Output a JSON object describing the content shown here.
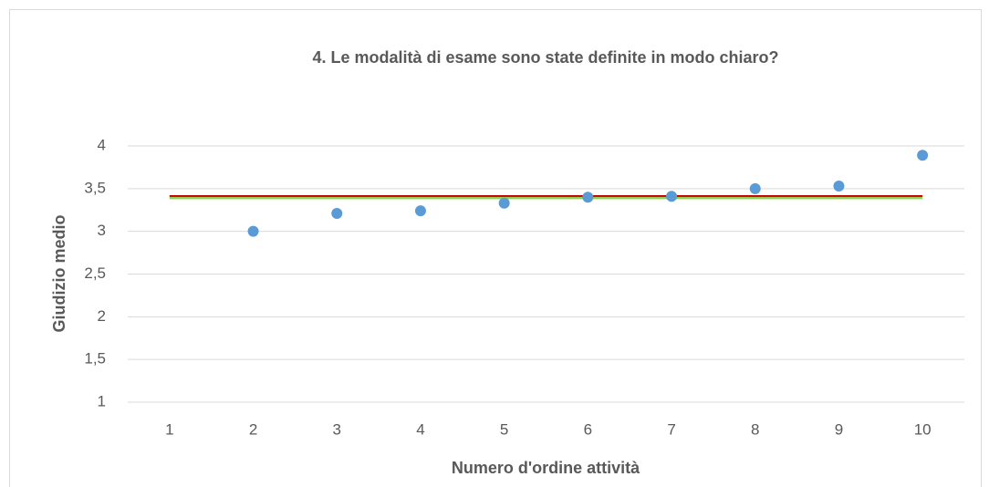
{
  "chart_data": {
    "type": "scatter",
    "title": "4. Le modalità di esame sono state definite in modo chiaro?",
    "x_label": "Numero d'ordine attività",
    "y_label": "Giudizio medio",
    "series": [
      {
        "mode": "line",
        "color": "#c00000",
        "x": [
          1,
          10
        ],
        "values": [
          3.41,
          3.41
        ]
      },
      {
        "mode": "line",
        "color": "#92d050",
        "x": [
          1,
          10
        ],
        "values": [
          3.39,
          3.39
        ]
      },
      {
        "mode": "markers",
        "color": "#5b9bd5",
        "x": [
          2,
          3,
          4,
          5,
          6,
          7,
          8,
          9,
          10
        ],
        "values": [
          3.0,
          3.21,
          3.24,
          3.33,
          3.4,
          3.41,
          3.5,
          3.53,
          3.89
        ]
      }
    ],
    "xlim": [
      0.5,
      10.5
    ],
    "xticks": [
      1,
      2,
      3,
      4,
      5,
      6,
      7,
      8,
      9,
      10
    ],
    "ylim": [
      1,
      4
    ],
    "yticks": [
      1,
      {
        "value": 1.5,
        "label": "1,5"
      },
      2,
      {
        "value": 2.5,
        "label": "2,5"
      },
      3,
      {
        "value": 3.5,
        "label": "3,5"
      },
      4
    ],
    "grid": true
  }
}
